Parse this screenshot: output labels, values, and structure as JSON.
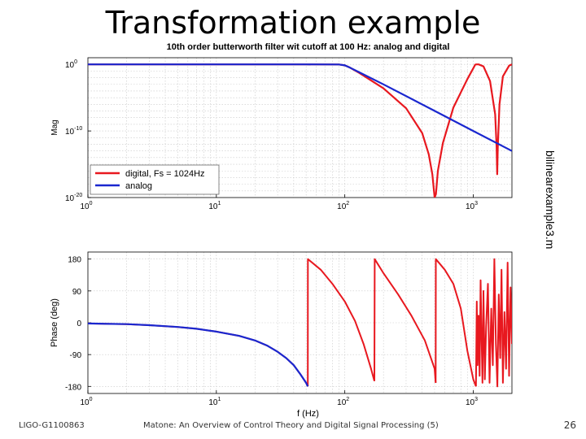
{
  "slide": {
    "title": "Transformation example",
    "side_note": "bilinearexample3.m",
    "footer_left": "LIGO-G1100863",
    "footer_center": "Matone: An Overview of Control Theory and Digital Signal Processing (5)",
    "page_number": "26"
  },
  "colors": {
    "digital": "#e8181f",
    "analog": "#1a27cf",
    "axis": "#000000",
    "grid": "#c8c8c8"
  },
  "chart_data": [
    {
      "type": "line",
      "title": "10th order butterworth filter wit cutoff at 100 Hz: analog and digital",
      "xlabel": "",
      "ylabel": "Mag",
      "xscale": "log",
      "yscale": "log",
      "xlim": [
        1,
        2000
      ],
      "ylim_exp": [
        -20,
        1
      ],
      "x_ticks": [
        {
          "base": "10",
          "exp": "0",
          "value": 1
        },
        {
          "base": "10",
          "exp": "1",
          "value": 10
        },
        {
          "base": "10",
          "exp": "2",
          "value": 100
        },
        {
          "base": "10",
          "exp": "3",
          "value": 1000
        }
      ],
      "y_ticks": [
        {
          "base": "10",
          "exp": "0",
          "value_exp": 0
        },
        {
          "base": "10",
          "exp": "-10",
          "value_exp": -10
        },
        {
          "base": "10",
          "exp": "-20",
          "value_exp": -20
        }
      ],
      "legend": {
        "position": "bottom-left",
        "entries": [
          "digital, Fs = 1024Hz",
          "analog"
        ]
      },
      "series": [
        {
          "name": "analog",
          "x": [
            1,
            10,
            50,
            90,
            100,
            110,
            130,
            200,
            500,
            1000,
            2000
          ],
          "y_log10": [
            0,
            0,
            0,
            -0.01,
            -0.15,
            -0.5,
            -1.2,
            -3.0,
            -6.99,
            -10.0,
            -13.0
          ]
        },
        {
          "name": "digital, Fs = 1024Hz",
          "x": [
            1,
            10,
            50,
            90,
            100,
            110,
            130,
            200,
            300,
            400,
            450,
            480,
            500,
            512,
            530,
            580,
            700,
            900,
            1020,
            1035,
            1060,
            1100,
            1200,
            1350,
            1480,
            1520,
            1536,
            1552,
            1600,
            1700,
            1900,
            2000
          ],
          "y_log10": [
            0,
            0,
            0,
            -0.01,
            -0.15,
            -0.5,
            -1.3,
            -3.6,
            -6.6,
            -10.3,
            -13.5,
            -16.5,
            -20,
            -19.5,
            -16.0,
            -11.8,
            -6.5,
            -2.2,
            -0.3,
            -0.05,
            0,
            0,
            -0.3,
            -2.5,
            -7.5,
            -12.5,
            -16.5,
            -12.5,
            -6.0,
            -1.8,
            -0.2,
            0
          ]
        }
      ]
    },
    {
      "type": "line",
      "title": "",
      "xlabel": "f (Hz)",
      "ylabel": "Phase (deg)",
      "xscale": "log",
      "xlim": [
        1,
        2000
      ],
      "ylim": [
        -200,
        200
      ],
      "x_ticks": [
        {
          "base": "10",
          "exp": "0",
          "value": 1
        },
        {
          "base": "10",
          "exp": "1",
          "value": 10
        },
        {
          "base": "10",
          "exp": "2",
          "value": 100
        },
        {
          "base": "10",
          "exp": "3",
          "value": 1000
        }
      ],
      "y_ticks": [
        180,
        90,
        0,
        -90,
        -180
      ],
      "series": [
        {
          "name": "analog",
          "x": [
            1,
            2,
            3,
            5,
            7,
            10,
            15,
            20,
            25,
            30,
            35,
            40,
            45,
            50,
            51.5
          ],
          "y": [
            -2,
            -4,
            -7,
            -12,
            -17,
            -25,
            -37,
            -50,
            -65,
            -82,
            -100,
            -120,
            -145,
            -170,
            -180
          ]
        },
        {
          "name": "digital, Fs = 1024Hz",
          "segments": [
            {
              "x": [
                1,
                2,
                3,
                5,
                7,
                10,
                15,
                20,
                25,
                30,
                35,
                40,
                45,
                50,
                51.5
              ],
              "y": [
                -2,
                -4,
                -7,
                -12,
                -17,
                -25,
                -37,
                -50,
                -65,
                -82,
                -100,
                -120,
                -145,
                -170,
                -180
              ]
            },
            {
              "x": [
                51.5,
                51.6,
                65,
                80,
                100,
                120,
                140,
                160,
                170
              ],
              "y": [
                -180,
                180,
                150,
                110,
                60,
                5,
                -60,
                -130,
                -165
              ]
            },
            {
              "x": [
                170,
                171,
                200,
                260,
                330,
                420,
                500,
                510
              ],
              "y": [
                -165,
                180,
                140,
                80,
                20,
                -50,
                -130,
                -170
              ]
            },
            {
              "x": [
                510,
                511,
                600,
                700,
                800,
                900,
                1000,
                1050
              ],
              "y": [
                -170,
                180,
                150,
                110,
                40,
                -80,
                -160,
                -180
              ]
            },
            {
              "x": [
                1050,
                1065,
                1080,
                1100,
                1120,
                1140,
                1160,
                1180,
                1200,
                1230,
                1260,
                1300,
                1340,
                1380,
                1420,
                1460,
                1500,
                1540,
                1580,
                1620,
                1660,
                1700,
                1750,
                1800,
                1850,
                1900,
                1950,
                2000
              ],
              "y": [
                -180,
                60,
                -120,
                20,
                -150,
                120,
                -40,
                -170,
                90,
                -160,
                -10,
                110,
                -170,
                40,
                -120,
                180,
                -60,
                -180,
                80,
                -100,
                150,
                -170,
                30,
                -130,
                170,
                -150,
                100,
                -60
              ]
            }
          ]
        }
      ]
    }
  ]
}
